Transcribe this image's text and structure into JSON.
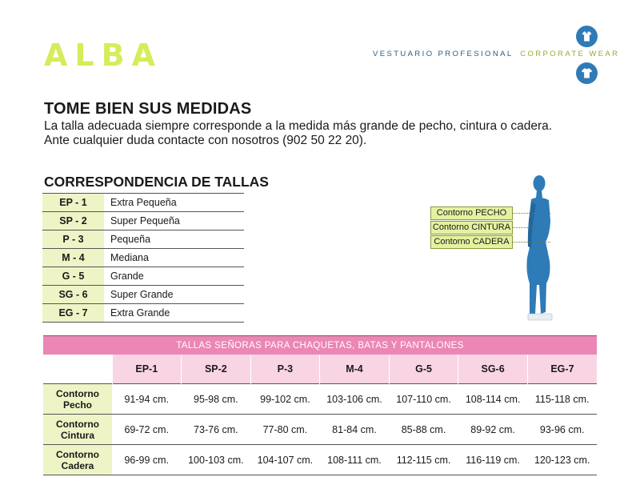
{
  "header": {
    "logo": "ALBA",
    "tagline_left": "VESTUARIO PROFESIONAL",
    "tagline_right": "CORPORATE WEAR"
  },
  "intro": {
    "title": "TOME BIEN SUS MEDIDAS",
    "line1": "La talla adecuada siempre corresponde a la medida más grande de pecho, cintura o cadera.",
    "line2": "Ante cualquier duda contacte con nosotros (902 50 22 20)."
  },
  "correspondence": {
    "title": "CORRESPONDENCIA DE TALLAS",
    "rows": [
      {
        "code": "EP - 1",
        "label": "Extra Pequeña"
      },
      {
        "code": "SP - 2",
        "label": "Super Pequeña"
      },
      {
        "code": "P - 3",
        "label": "Pequeña"
      },
      {
        "code": "M - 4",
        "label": "Mediana"
      },
      {
        "code": "G - 5",
        "label": "Grande"
      },
      {
        "code": "SG - 6",
        "label": "Super Grande"
      },
      {
        "code": "EG - 7",
        "label": "Extra Grande"
      }
    ]
  },
  "figure": {
    "labels": [
      "Contorno PECHO",
      "Contorno CINTURA",
      "Contorno CADERA"
    ]
  },
  "size_table": {
    "caption": "TALLAS SEÑORAS PARA CHAQUETAS, BATAS Y PANTALONES",
    "columns": [
      "EP-1",
      "SP-2",
      "P-3",
      "M-4",
      "G-5",
      "SG-6",
      "EG-7"
    ],
    "rows": [
      {
        "label_1": "Contorno",
        "label_2": "Pecho",
        "values": [
          "91-94 cm.",
          "95-98 cm.",
          "99-102 cm.",
          "103-106 cm.",
          "107-110 cm.",
          "108-114 cm.",
          "115-118 cm."
        ]
      },
      {
        "label_1": "Contorno",
        "label_2": "Cintura",
        "values": [
          "69-72 cm.",
          "73-76 cm.",
          "77-80 cm.",
          "81-84 cm.",
          "85-88 cm.",
          "89-92 cm.",
          "93-96 cm."
        ]
      },
      {
        "label_1": "Contorno",
        "label_2": "Cadera",
        "values": [
          "96-99 cm.",
          "100-103 cm.",
          "104-107 cm.",
          "108-111 cm.",
          "112-115 cm.",
          "116-119 cm.",
          "120-123 cm."
        ]
      }
    ]
  },
  "colors": {
    "logo": "#d6ec5a",
    "accent_pink": "#ec86b4",
    "header_pink": "#f9d5e4",
    "accent_green": "#eef4c5",
    "figure_blue": "#2e7bb7"
  },
  "icons": [
    "shirt-badge-icon",
    "tshirt-badge-icon"
  ]
}
